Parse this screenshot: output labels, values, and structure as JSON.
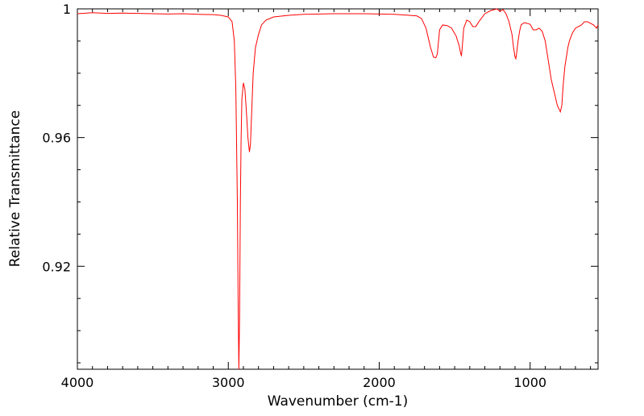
{
  "chart_data": {
    "type": "line",
    "title": "",
    "xlabel": "Wavenumber (cm-1)",
    "ylabel": "Relative Transmittance",
    "xlim": [
      4000,
      550
    ],
    "ylim": [
      0.888,
      1.0
    ],
    "x_ticks": [
      {
        "value": 4000,
        "label": "4000"
      },
      {
        "value": 3000,
        "label": "3000"
      },
      {
        "value": 2000,
        "label": "2000"
      },
      {
        "value": 1000,
        "label": "1000"
      }
    ],
    "y_ticks": [
      {
        "value": 1.0,
        "label": "1"
      },
      {
        "value": 0.96,
        "label": "0.96"
      },
      {
        "value": 0.92,
        "label": "0.92"
      }
    ],
    "grid": false,
    "legend": "none",
    "series": [
      {
        "color": "#ff0000",
        "x": [
          4000,
          3900,
          3800,
          3700,
          3600,
          3500,
          3400,
          3300,
          3200,
          3100,
          3050,
          3000,
          2975,
          2960,
          2950,
          2940,
          2935,
          2930,
          2925,
          2920,
          2915,
          2910,
          2900,
          2890,
          2880,
          2870,
          2860,
          2853,
          2845,
          2835,
          2820,
          2800,
          2780,
          2750,
          2700,
          2600,
          2500,
          2400,
          2300,
          2200,
          2100,
          2000,
          1900,
          1800,
          1750,
          1720,
          1690,
          1660,
          1640,
          1625,
          1615,
          1600,
          1580,
          1550,
          1520,
          1490,
          1470,
          1460,
          1455,
          1450,
          1440,
          1420,
          1400,
          1380,
          1360,
          1340,
          1300,
          1260,
          1220,
          1200,
          1180,
          1160,
          1140,
          1120,
          1110,
          1100,
          1095,
          1090,
          1080,
          1070,
          1060,
          1040,
          1020,
          1000,
          980,
          960,
          940,
          920,
          900,
          880,
          860,
          840,
          820,
          810,
          800,
          790,
          780,
          770,
          760,
          750,
          740,
          720,
          700,
          680,
          660,
          640,
          620,
          600,
          580,
          560,
          550
        ],
        "y": [
          0.9985,
          0.9988,
          0.9986,
          0.9987,
          0.9986,
          0.9985,
          0.9984,
          0.9985,
          0.9983,
          0.9982,
          0.998,
          0.9975,
          0.996,
          0.99,
          0.975,
          0.94,
          0.91,
          0.888,
          0.905,
          0.94,
          0.96,
          0.972,
          0.977,
          0.975,
          0.968,
          0.96,
          0.9555,
          0.958,
          0.968,
          0.98,
          0.988,
          0.992,
          0.995,
          0.9965,
          0.9975,
          0.998,
          0.9983,
          0.9984,
          0.9985,
          0.9985,
          0.9985,
          0.9984,
          0.9983,
          0.998,
          0.9978,
          0.997,
          0.994,
          0.988,
          0.985,
          0.9848,
          0.986,
          0.9935,
          0.995,
          0.9948,
          0.994,
          0.9915,
          0.9885,
          0.986,
          0.9855,
          0.988,
          0.994,
          0.9965,
          0.996,
          0.9945,
          0.9945,
          0.996,
          0.9985,
          0.9995,
          1.0,
          0.9992,
          0.9998,
          0.9985,
          0.996,
          0.992,
          0.988,
          0.985,
          0.9845,
          0.986,
          0.99,
          0.993,
          0.995,
          0.9957,
          0.9955,
          0.9952,
          0.9935,
          0.9935,
          0.994,
          0.993,
          0.99,
          0.984,
          0.978,
          0.974,
          0.97,
          0.969,
          0.968,
          0.97,
          0.977,
          0.982,
          0.985,
          0.988,
          0.99,
          0.9925,
          0.994,
          0.9945,
          0.995,
          0.996,
          0.996,
          0.9955,
          0.995,
          0.994,
          0.995
        ]
      }
    ]
  }
}
